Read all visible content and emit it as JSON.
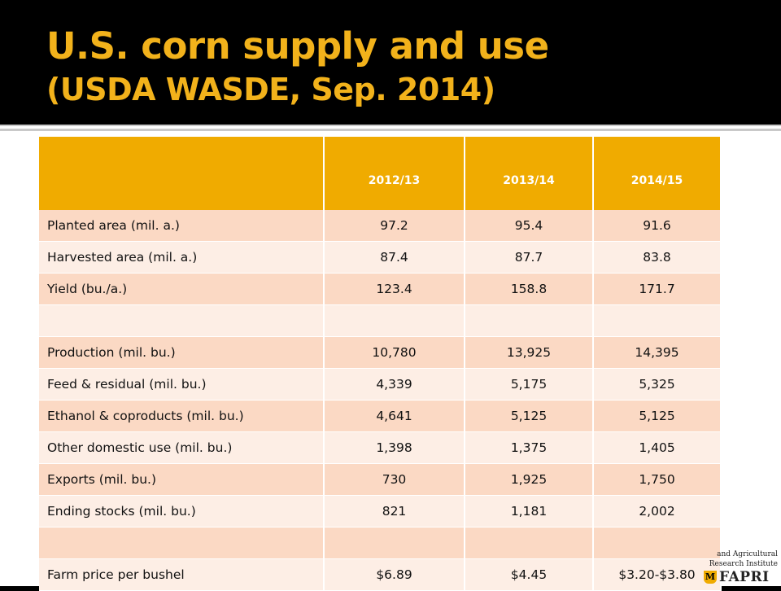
{
  "slide": {
    "title_line1": "U.S. corn supply and use",
    "title_line2": "(USDA WASDE, Sep. 2014)",
    "colors": {
      "title": "#f2b21b",
      "header_fill": "#f0ab00",
      "row_dark": "#fbd9c4",
      "row_light": "#fdeee5"
    }
  },
  "table": {
    "headers": [
      "",
      "2012/13",
      "2013/14",
      "2014/15"
    ],
    "rows": [
      [
        "Planted area (mil. a.)",
        "97.2",
        "95.4",
        "91.6"
      ],
      [
        "Harvested area (mil. a.)",
        "87.4",
        "87.7",
        "83.8"
      ],
      [
        "Yield (bu./a.)",
        "123.4",
        "158.8",
        "171.7"
      ],
      [
        "",
        "",
        "",
        ""
      ],
      [
        "Production (mil. bu.)",
        "10,780",
        "13,925",
        "14,395"
      ],
      [
        "Feed & residual (mil. bu.)",
        "4,339",
        "5,175",
        "5,325"
      ],
      [
        "Ethanol & coproducts (mil. bu.)",
        "4,641",
        "5,125",
        "5,125"
      ],
      [
        "Other domestic use (mil. bu.)",
        "1,398",
        "1,375",
        "1,405"
      ],
      [
        "Exports (mil. bu.)",
        "730",
        "1,925",
        "1,750"
      ],
      [
        "Ending stocks (mil. bu.)",
        "821",
        "1,181",
        "2,002"
      ],
      [
        "",
        "",
        "",
        ""
      ],
      [
        "Farm price per bushel",
        "$6.89",
        "$4.45",
        "$3.20-$3.80"
      ]
    ]
  },
  "logo": {
    "line1": "and Agricultural",
    "line2": "Research Institute",
    "wordmark": "FAPRI",
    "shield_icon": "mu-shield-icon"
  }
}
